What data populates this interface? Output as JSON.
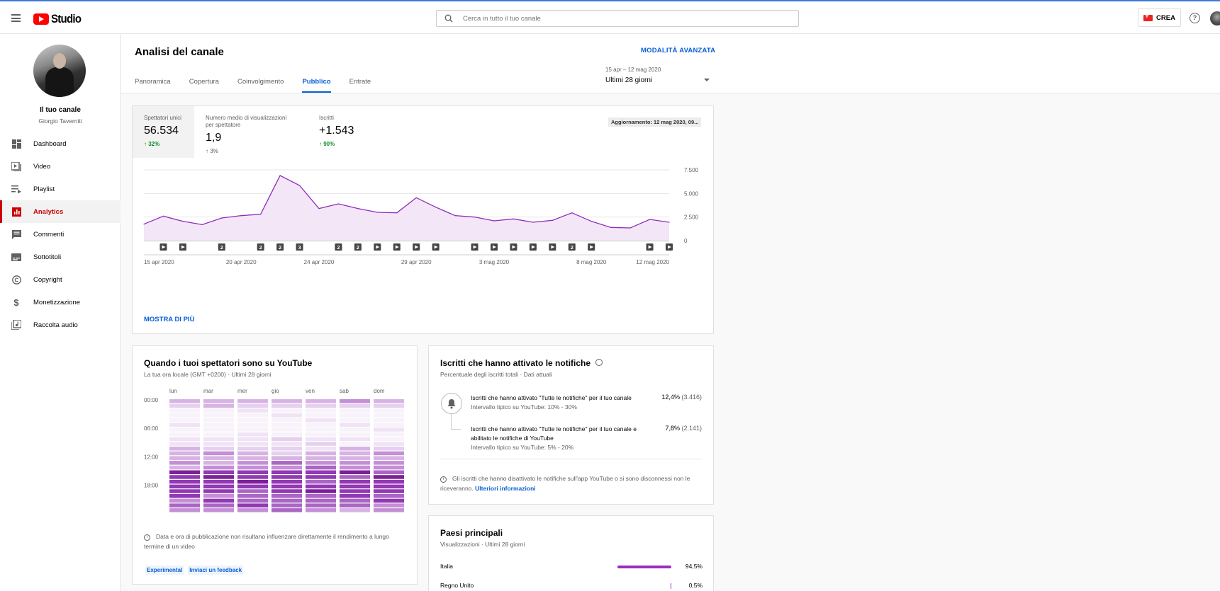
{
  "topbar": {
    "logo_text": "Studio",
    "search_placeholder": "Cerca in tutto il tuo canale",
    "create_label": "CREA",
    "help_symbol": "?"
  },
  "sidebar": {
    "channel_title": "Il tuo canale",
    "channel_owner": "Giorgio Taverniti",
    "items": [
      {
        "label": "Dashboard",
        "icon": "dashboard-icon"
      },
      {
        "label": "Video",
        "icon": "video-icon"
      },
      {
        "label": "Playlist",
        "icon": "playlist-icon"
      },
      {
        "label": "Analytics",
        "icon": "analytics-icon",
        "active": true
      },
      {
        "label": "Commenti",
        "icon": "comments-icon"
      },
      {
        "label": "Sottotitoli",
        "icon": "subtitles-icon"
      },
      {
        "label": "Copyright",
        "icon": "copyright-icon"
      },
      {
        "label": "Monetizzazione",
        "icon": "dollar-icon"
      },
      {
        "label": "Raccolta audio",
        "icon": "audio-library-icon"
      }
    ]
  },
  "header": {
    "title": "Analisi del canale",
    "advanced_mode": "MODALITÀ AVANZATA",
    "tabs": [
      "Panoramica",
      "Copertura",
      "Coinvolgimento",
      "Pubblico",
      "Entrate"
    ],
    "active_tab": "Pubblico",
    "date_range_small": "15 apr – 12 mag 2020",
    "date_range_label": "Ultimi 28 giorni"
  },
  "metrics": [
    {
      "label": "Spettatori unici",
      "value": "56.534",
      "change": "32%",
      "trend": "up"
    },
    {
      "label": "Numero medio di visualizzazioni per spettatore",
      "value": "1,9",
      "change": "3%",
      "trend": "neutral"
    },
    {
      "label": "Iscritti",
      "value": "+1.543",
      "change": "90%",
      "trend": "up"
    }
  ],
  "updated_label": "Aggiornamento: 12 mag 2020, 09...",
  "show_more": "MOSTRA DI PIÙ",
  "chart_data": {
    "type": "area",
    "title": "Spettatori unici",
    "x_labels": [
      "15 apr 2020",
      "20 apr 2020",
      "24 apr 2020",
      "29 apr 2020",
      "3 mag 2020",
      "8 mag 2020",
      "12 mag 2020"
    ],
    "y_ticks": [
      "7.500",
      "5.000",
      "2.500",
      "0"
    ],
    "ylim": [
      0,
      7500
    ],
    "values": [
      1750,
      2600,
      2050,
      1700,
      2400,
      2650,
      2800,
      6900,
      5850,
      3400,
      3900,
      3400,
      3000,
      2950,
      4550,
      3550,
      2650,
      2500,
      2100,
      2300,
      1950,
      2150,
      2950,
      2050,
      1400,
      1350,
      2250,
      1950
    ],
    "markers": [
      "",
      "play",
      "play",
      "",
      "2",
      "",
      "2",
      "2",
      "3",
      "",
      "2",
      "2",
      "play",
      "play",
      "play",
      "play",
      "",
      "play",
      "play",
      "play",
      "play",
      "play",
      "2",
      "play",
      "",
      "",
      "play",
      "play"
    ]
  },
  "when_card": {
    "title": "Quando i tuoi spettatori sono su YouTube",
    "subtitle": "La tua ora locale (GMT +0200) · Ultimi 28 giorni",
    "days": [
      "lun",
      "mar",
      "mer",
      "gio",
      "ven",
      "sab",
      "dom"
    ],
    "hours": [
      "00:00",
      "06:00",
      "12:00",
      "18:00"
    ],
    "note": "Data e ora di pubblicazione non risultano influenzare direttamente il rendimento a lungo termine di un video",
    "badge_experimental": "Experimental",
    "badge_feedback": "Inviaci un feedback"
  },
  "notif_card": {
    "title": "Iscritti che hanno attivato le notifiche",
    "subtitle": "Percentuale degli iscritti totali · Dati attuali",
    "row1_text": "Iscritti che hanno attivato \"Tutte le notifiche\" per il tuo canale",
    "row1_sub": "Intervallo tipico su YouTube: 10% - 30%",
    "row1_value": "12,4%",
    "row1_count": "(3.416)",
    "row2_text": "Iscritti che hanno attivato \"Tutte le notifiche\" per il tuo canale e abilitato le notifiche di YouTube",
    "row2_sub": "Intervallo tipico su YouTube: 5% - 20%",
    "row2_value": "7,8%",
    "row2_count": "(2.141)",
    "footer": "Gli iscritti che hanno disattivato le notifiche sull'app YouTube o si sono disconnessi non le riceveranno.",
    "footer_link": "Ulteriori informazioni"
  },
  "countries_card": {
    "title": "Paesi principali",
    "subtitle": "Visualizzazioni · Ultimi 28 giorni",
    "rows": [
      {
        "name": "Italia",
        "pct": "94,5%",
        "value": 94.5
      },
      {
        "name": "Regno Unito",
        "pct": "0,5%",
        "value": 0.5
      }
    ]
  },
  "colors": {
    "accent_blue": "#065fd4",
    "active_red": "#cc0000",
    "chart_line": "#8e2cba",
    "chart_fill": "#f3e6f7",
    "positive_green": "#0c8f2b"
  }
}
